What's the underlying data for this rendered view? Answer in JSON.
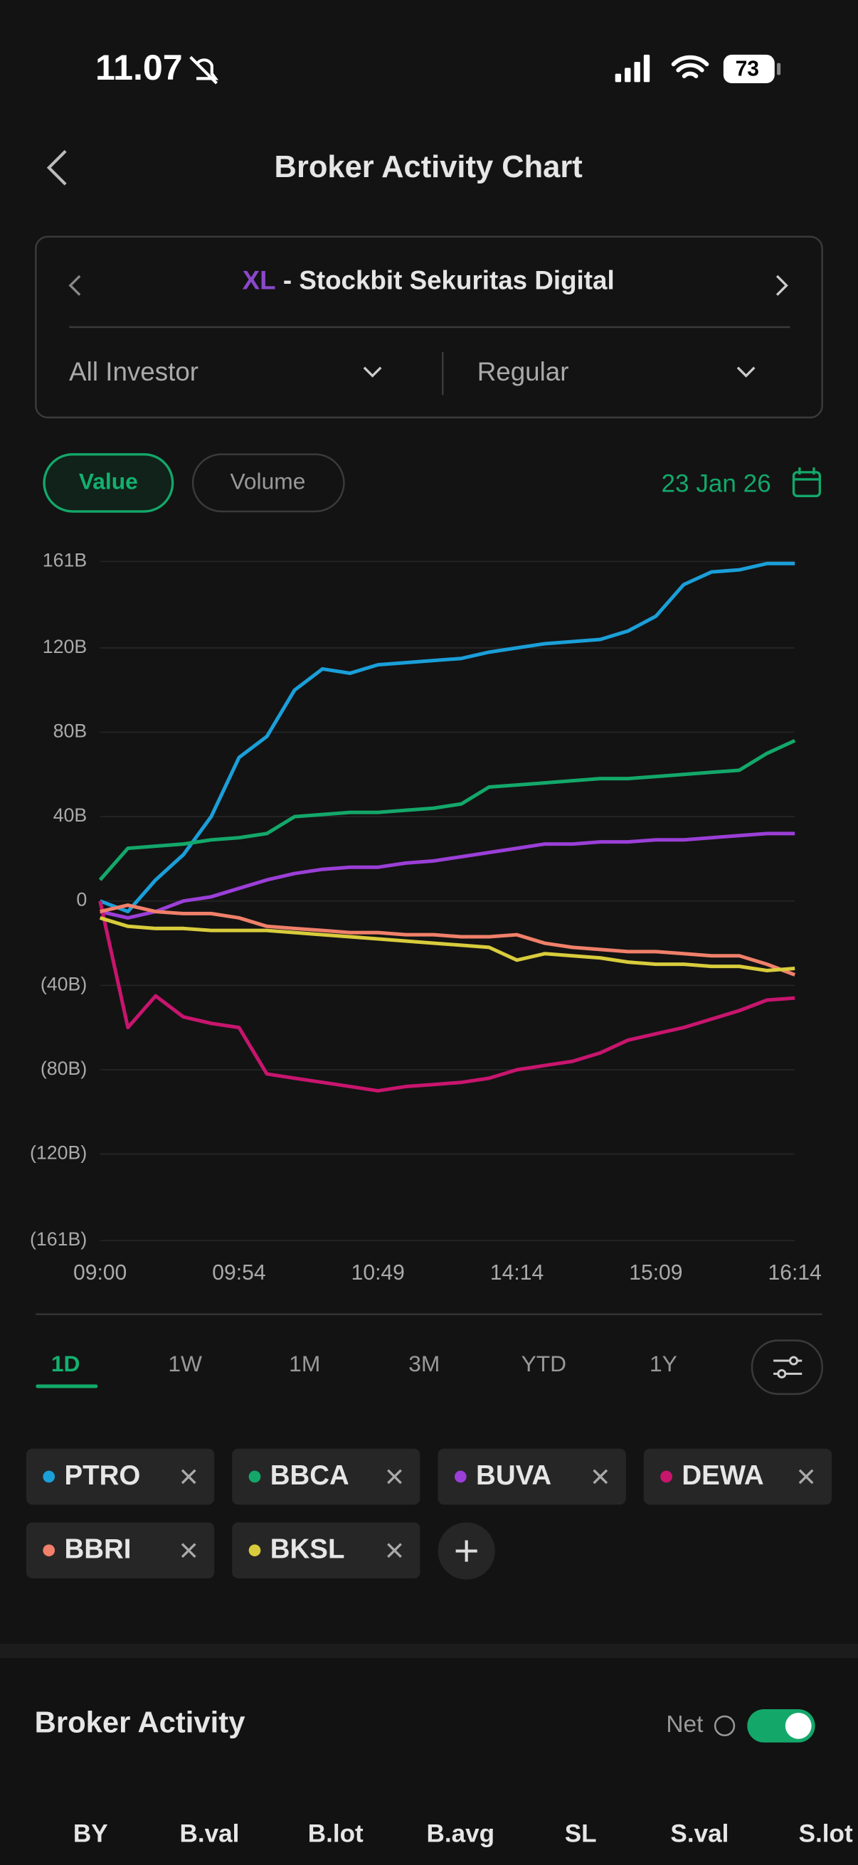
{
  "status_bar": {
    "time": "11.07",
    "battery": "73"
  },
  "header": {
    "title": "Broker Activity Chart"
  },
  "broker": {
    "code": "XL",
    "name": " - Stockbit Sekuritas Digital"
  },
  "filters": [
    "All Investor",
    "Regular"
  ],
  "modes": [
    "Value",
    "Volume"
  ],
  "date": "23 Jan 26",
  "periods": [
    "1D",
    "1W",
    "1M",
    "3M",
    "YTD",
    "1Y"
  ],
  "section": {
    "title": "Broker Activity",
    "toggle_label": "Net"
  },
  "table": {
    "columns": [
      "BY",
      "B.val",
      "B.lot",
      "B.avg",
      "SL",
      "S.val",
      "S.lot"
    ]
  },
  "chart_data": {
    "type": "line",
    "categories": [
      "09:00",
      null,
      null,
      null,
      null,
      "09:54",
      null,
      null,
      null,
      null,
      "10:49",
      null,
      null,
      null,
      null,
      "14:14",
      null,
      null,
      null,
      null,
      "15:09",
      null,
      null,
      null,
      null,
      "16:14"
    ],
    "ylim": [
      -161,
      161
    ],
    "yticks": [
      {
        "value": 161,
        "label": "161B"
      },
      {
        "value": 120,
        "label": "120B"
      },
      {
        "value": 80,
        "label": "80B"
      },
      {
        "value": 40,
        "label": "40B"
      },
      0,
      {
        "value": -40,
        "label": "(40B)"
      },
      {
        "value": -80,
        "label": "(80B)"
      },
      {
        "value": -120,
        "label": "(120B)"
      },
      {
        "value": -161,
        "label": "(161B)"
      }
    ],
    "grid": true,
    "series": [
      {
        "name": "PTRO",
        "color": "#1a9fd9",
        "values": [
          0,
          -5,
          10,
          22,
          40,
          68,
          78,
          100,
          110,
          108,
          112,
          113,
          114,
          115,
          118,
          120,
          122,
          123,
          124,
          128,
          135,
          150,
          156,
          157,
          160,
          160
        ]
      },
      {
        "name": "BBCA",
        "color": "#13a86a",
        "values": [
          10,
          25,
          26,
          27,
          29,
          30,
          32,
          40,
          41,
          42,
          42,
          43,
          44,
          46,
          54,
          55,
          56,
          57,
          58,
          58,
          59,
          60,
          61,
          62,
          70,
          76
        ]
      },
      {
        "name": "BUVA",
        "color": "#9b3fd8",
        "values": [
          -5,
          -8,
          -5,
          0,
          2,
          6,
          10,
          13,
          15,
          16,
          16,
          18,
          19,
          21,
          23,
          25,
          27,
          27,
          28,
          28,
          29,
          29,
          30,
          31,
          32,
          32
        ]
      },
      {
        "name": "DEWA",
        "color": "#c8156e",
        "values": [
          0,
          -60,
          -45,
          -55,
          -58,
          -60,
          -82,
          -84,
          -86,
          -88,
          -90,
          -88,
          -87,
          -86,
          -84,
          -80,
          -78,
          -76,
          -72,
          -66,
          -63,
          -60,
          -56,
          -52,
          -47,
          -46
        ]
      },
      {
        "name": "BBRI",
        "color": "#f0806a",
        "values": [
          -5,
          -2,
          -5,
          -6,
          -6,
          -8,
          -12,
          -13,
          -14,
          -15,
          -15,
          -16,
          -16,
          -17,
          -17,
          -16,
          -20,
          -22,
          -23,
          -24,
          -24,
          -25,
          -26,
          -26,
          -30,
          -35
        ]
      },
      {
        "name": "BKSL",
        "color": "#d8cc3c",
        "values": [
          -8,
          -12,
          -13,
          -13,
          -14,
          -14,
          -14,
          -15,
          -16,
          -17,
          -18,
          -19,
          -20,
          -21,
          -22,
          -28,
          -25,
          -26,
          -27,
          -29,
          -30,
          -30,
          -31,
          -31,
          -33,
          -32
        ]
      }
    ]
  }
}
